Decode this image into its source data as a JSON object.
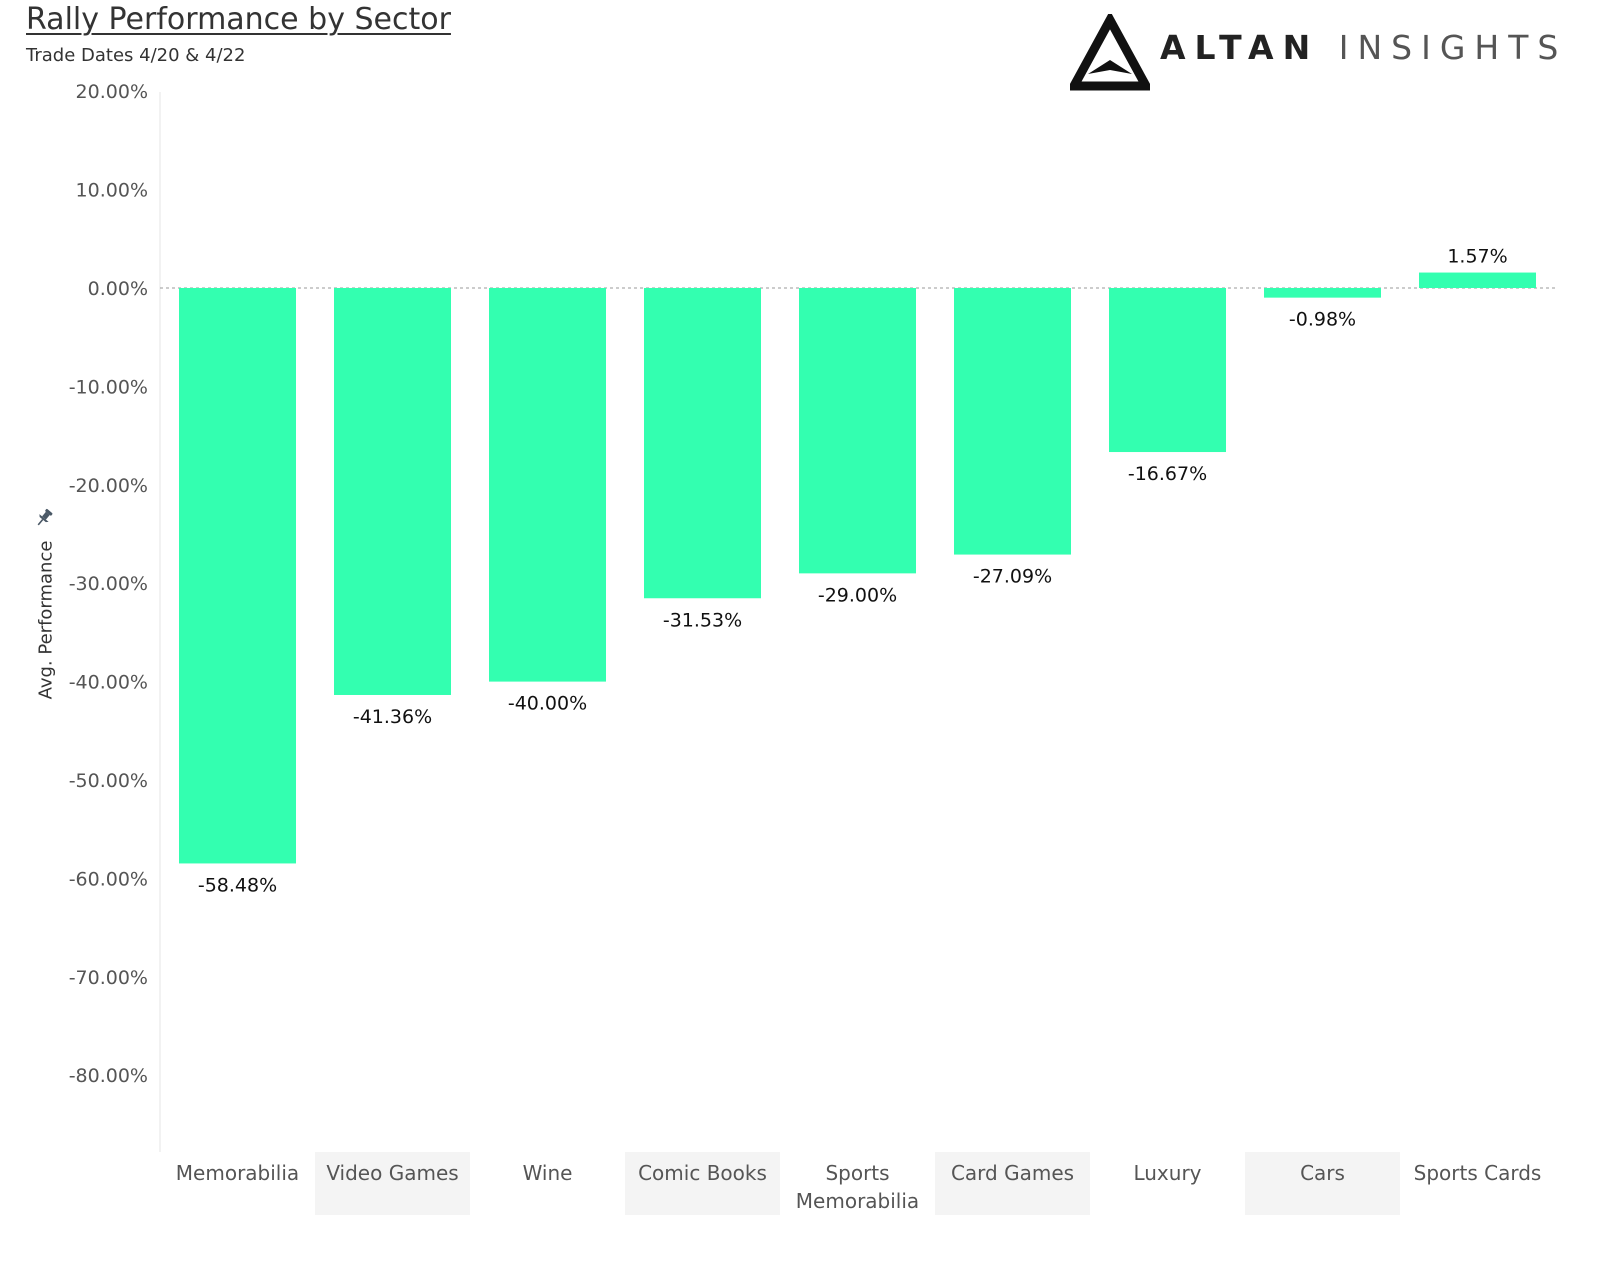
{
  "header": {
    "title": "Rally Performance by Sector",
    "subtitle": "Trade Dates 4/20 & 4/22"
  },
  "logo": {
    "icon": "triangle-logo-icon",
    "word1": "ALTAN",
    "word2": "INSIGHTS"
  },
  "colors": {
    "bar": "#33ffb0",
    "zero_line": "#999999",
    "band": "#f4f4f4"
  },
  "pin_icon": "pin-icon",
  "chart_data": {
    "type": "bar",
    "categories": [
      "Memorabilia",
      "Video Games",
      "Wine",
      "Comic Books",
      "Sports Memorabilia",
      "Card Games",
      "Luxury",
      "Cars",
      "Sports Cards"
    ],
    "values": [
      -58.48,
      -41.36,
      -40.0,
      -31.53,
      -29.0,
      -27.09,
      -16.67,
      -0.98,
      1.57
    ],
    "value_labels": [
      "-58.48%",
      "-41.36%",
      "-40.00%",
      "-31.53%",
      "-29.00%",
      "-27.09%",
      "-16.67%",
      "-0.98%",
      "1.57%"
    ],
    "ylabel": "Avg. Performance",
    "xlabel": "",
    "ylim": [
      -87,
      20
    ],
    "yticks": [
      20,
      10,
      0,
      -10,
      -20,
      -30,
      -40,
      -50,
      -60,
      -70,
      -80
    ],
    "ytick_labels": [
      "20.00%",
      "10.00%",
      "0.00%",
      "-10.00%",
      "-20.00%",
      "-30.00%",
      "-40.00%",
      "-50.00%",
      "-60.00%",
      "-70.00%",
      "-80.00%"
    ],
    "grid": false,
    "zero_line": true,
    "legend": "none"
  }
}
